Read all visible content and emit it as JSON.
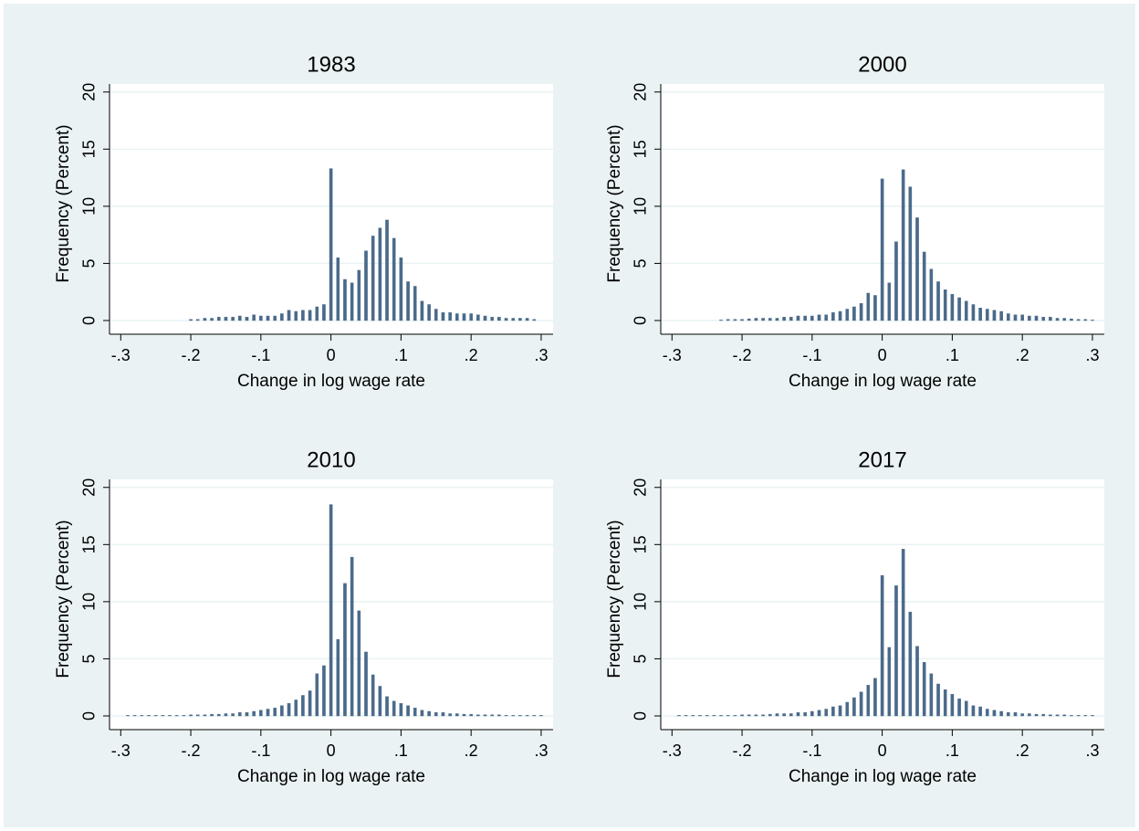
{
  "chart_data": [
    {
      "type": "bar",
      "title": "1983",
      "xlabel": "Change in log wage rate",
      "ylabel": "Frequency (Percent)",
      "color": "#4a6a8a",
      "grid": true,
      "xlim": [
        -0.316,
        0.317
      ],
      "ylim": [
        -1.2,
        20.7
      ],
      "xticks": [
        {
          "value": -0.3,
          "label": "-.3"
        },
        {
          "value": -0.2,
          "label": "-.2"
        },
        {
          "value": -0.1,
          "label": "-.1"
        },
        0,
        {
          "value": 0.1,
          "label": ".1"
        },
        {
          "value": 0.2,
          "label": ".2"
        },
        {
          "value": 0.3,
          "label": ".3"
        }
      ],
      "yticks": [
        0,
        5,
        10,
        15,
        20
      ],
      "x": [
        -0.3,
        -0.29,
        -0.28,
        -0.27,
        -0.26,
        -0.25,
        -0.24,
        -0.23,
        -0.22,
        -0.21,
        -0.2,
        -0.19,
        -0.18,
        -0.17,
        -0.16,
        -0.15,
        -0.14,
        -0.13,
        -0.12,
        -0.11,
        -0.1,
        -0.09,
        -0.08,
        -0.07,
        -0.06,
        -0.05,
        -0.04,
        -0.03,
        -0.02,
        -0.01,
        0,
        0.01,
        0.02,
        0.03,
        0.04,
        0.05,
        0.06,
        0.07,
        0.08,
        0.09,
        0.1,
        0.11,
        0.12,
        0.13,
        0.14,
        0.15,
        0.16,
        0.17,
        0.18,
        0.19,
        0.2,
        0.21,
        0.22,
        0.23,
        0.24,
        0.25,
        0.26,
        0.27,
        0.28,
        0.29,
        0.3
      ],
      "values": [
        0,
        0,
        0,
        0,
        0,
        0,
        0,
        0,
        0,
        0,
        0.1,
        0.1,
        0.2,
        0.2,
        0.3,
        0.3,
        0.3,
        0.4,
        0.3,
        0.5,
        0.4,
        0.4,
        0.4,
        0.6,
        0.9,
        0.8,
        0.9,
        0.9,
        1.2,
        1.4,
        13.3,
        5.5,
        3.6,
        3.3,
        4.4,
        6.1,
        7.4,
        8.1,
        8.8,
        7.2,
        5.5,
        3.4,
        3.0,
        1.7,
        1.4,
        1.0,
        0.7,
        0.7,
        0.6,
        0.6,
        0.6,
        0.5,
        0.4,
        0.3,
        0.3,
        0.2,
        0.2,
        0.2,
        0.2,
        0.1,
        0
      ]
    },
    {
      "type": "bar",
      "title": "2000",
      "xlabel": "Change in log wage rate",
      "ylabel": "Frequency (Percent)",
      "color": "#4a6a8a",
      "grid": true,
      "xlim": [
        -0.316,
        0.317
      ],
      "ylim": [
        -1.2,
        20.7
      ],
      "xticks": [
        {
          "value": -0.3,
          "label": "-.3"
        },
        {
          "value": -0.2,
          "label": "-.2"
        },
        {
          "value": -0.1,
          "label": "-.1"
        },
        0,
        {
          "value": 0.1,
          "label": ".1"
        },
        {
          "value": 0.2,
          "label": ".2"
        },
        {
          "value": 0.3,
          "label": ".3"
        }
      ],
      "yticks": [
        0,
        5,
        10,
        15,
        20
      ],
      "x": [
        -0.3,
        -0.29,
        -0.28,
        -0.27,
        -0.26,
        -0.25,
        -0.24,
        -0.23,
        -0.22,
        -0.21,
        -0.2,
        -0.19,
        -0.18,
        -0.17,
        -0.16,
        -0.15,
        -0.14,
        -0.13,
        -0.12,
        -0.11,
        -0.1,
        -0.09,
        -0.08,
        -0.07,
        -0.06,
        -0.05,
        -0.04,
        -0.03,
        -0.02,
        -0.01,
        0,
        0.01,
        0.02,
        0.03,
        0.04,
        0.05,
        0.06,
        0.07,
        0.08,
        0.09,
        0.1,
        0.11,
        0.12,
        0.13,
        0.14,
        0.15,
        0.16,
        0.17,
        0.18,
        0.19,
        0.2,
        0.21,
        0.22,
        0.23,
        0.24,
        0.25,
        0.26,
        0.27,
        0.28,
        0.29,
        0.3
      ],
      "values": [
        0,
        0,
        0,
        0,
        0,
        0,
        0,
        0.05,
        0.1,
        0.1,
        0.1,
        0.15,
        0.2,
        0.2,
        0.2,
        0.2,
        0.3,
        0.3,
        0.4,
        0.4,
        0.4,
        0.5,
        0.5,
        0.7,
        0.8,
        1.0,
        1.2,
        1.5,
        2.4,
        2.2,
        12.4,
        3.3,
        6.9,
        13.2,
        11.7,
        9.0,
        6.0,
        4.5,
        3.4,
        2.7,
        2.3,
        2.0,
        1.7,
        1.4,
        1.1,
        1.0,
        0.9,
        0.8,
        0.6,
        0.5,
        0.5,
        0.4,
        0.4,
        0.3,
        0.3,
        0.2,
        0.2,
        0.15,
        0.1,
        0.1,
        0.05
      ]
    },
    {
      "type": "bar",
      "title": "2010",
      "xlabel": "Change in log wage rate",
      "ylabel": "Frequency (Percent)",
      "color": "#4a6a8a",
      "grid": true,
      "xlim": [
        -0.316,
        0.317
      ],
      "ylim": [
        -1.2,
        20.7
      ],
      "xticks": [
        {
          "value": -0.3,
          "label": "-.3"
        },
        {
          "value": -0.2,
          "label": "-.2"
        },
        {
          "value": -0.1,
          "label": "-.1"
        },
        0,
        {
          "value": 0.1,
          "label": ".1"
        },
        {
          "value": 0.2,
          "label": ".2"
        },
        {
          "value": 0.3,
          "label": ".3"
        }
      ],
      "yticks": [
        0,
        5,
        10,
        15,
        20
      ],
      "x": [
        -0.3,
        -0.29,
        -0.28,
        -0.27,
        -0.26,
        -0.25,
        -0.24,
        -0.23,
        -0.22,
        -0.21,
        -0.2,
        -0.19,
        -0.18,
        -0.17,
        -0.16,
        -0.15,
        -0.14,
        -0.13,
        -0.12,
        -0.11,
        -0.1,
        -0.09,
        -0.08,
        -0.07,
        -0.06,
        -0.05,
        -0.04,
        -0.03,
        -0.02,
        -0.01,
        0,
        0.01,
        0.02,
        0.03,
        0.04,
        0.05,
        0.06,
        0.07,
        0.08,
        0.09,
        0.1,
        0.11,
        0.12,
        0.13,
        0.14,
        0.15,
        0.16,
        0.17,
        0.18,
        0.19,
        0.2,
        0.21,
        0.22,
        0.23,
        0.24,
        0.25,
        0.26,
        0.27,
        0.28,
        0.29,
        0.3
      ],
      "values": [
        0,
        0.05,
        0.05,
        0.05,
        0.05,
        0.05,
        0.05,
        0.05,
        0.05,
        0.05,
        0.1,
        0.1,
        0.1,
        0.15,
        0.15,
        0.2,
        0.2,
        0.3,
        0.3,
        0.4,
        0.5,
        0.6,
        0.7,
        0.9,
        1.1,
        1.4,
        1.8,
        2.2,
        3.7,
        4.4,
        18.5,
        6.7,
        11.6,
        13.9,
        9.2,
        5.6,
        3.6,
        2.6,
        1.7,
        1.3,
        1.1,
        0.9,
        0.7,
        0.5,
        0.4,
        0.3,
        0.3,
        0.2,
        0.2,
        0.15,
        0.15,
        0.1,
        0.1,
        0.1,
        0.1,
        0.05,
        0.05,
        0.05,
        0.05,
        0.05,
        0.05
      ]
    },
    {
      "type": "bar",
      "title": "2017",
      "xlabel": "Change in log wage rate",
      "ylabel": "Frequency (Percent)",
      "color": "#4a6a8a",
      "grid": true,
      "xlim": [
        -0.316,
        0.317
      ],
      "ylim": [
        -1.2,
        20.7
      ],
      "xticks": [
        {
          "value": -0.3,
          "label": "-.3"
        },
        {
          "value": -0.2,
          "label": "-.2"
        },
        {
          "value": -0.1,
          "label": "-.1"
        },
        0,
        {
          "value": 0.1,
          "label": ".1"
        },
        {
          "value": 0.2,
          "label": ".2"
        },
        {
          "value": 0.3,
          "label": ".3"
        }
      ],
      "yticks": [
        0,
        5,
        10,
        15,
        20
      ],
      "x": [
        -0.3,
        -0.29,
        -0.28,
        -0.27,
        -0.26,
        -0.25,
        -0.24,
        -0.23,
        -0.22,
        -0.21,
        -0.2,
        -0.19,
        -0.18,
        -0.17,
        -0.16,
        -0.15,
        -0.14,
        -0.13,
        -0.12,
        -0.11,
        -0.1,
        -0.09,
        -0.08,
        -0.07,
        -0.06,
        -0.05,
        -0.04,
        -0.03,
        -0.02,
        -0.01,
        0,
        0.01,
        0.02,
        0.03,
        0.04,
        0.05,
        0.06,
        0.07,
        0.08,
        0.09,
        0.1,
        0.11,
        0.12,
        0.13,
        0.14,
        0.15,
        0.16,
        0.17,
        0.18,
        0.19,
        0.2,
        0.21,
        0.22,
        0.23,
        0.24,
        0.25,
        0.26,
        0.27,
        0.28,
        0.29,
        0.3
      ],
      "values": [
        0,
        0.05,
        0.05,
        0.05,
        0.05,
        0.05,
        0.05,
        0.05,
        0.05,
        0.05,
        0.1,
        0.1,
        0.1,
        0.1,
        0.15,
        0.2,
        0.2,
        0.2,
        0.3,
        0.3,
        0.4,
        0.5,
        0.6,
        0.8,
        0.9,
        1.2,
        1.6,
        2.1,
        2.7,
        3.3,
        12.3,
        6.0,
        11.4,
        14.6,
        9.1,
        6.1,
        4.7,
        3.7,
        2.8,
        2.3,
        1.9,
        1.5,
        1.3,
        0.9,
        0.8,
        0.6,
        0.5,
        0.4,
        0.3,
        0.3,
        0.2,
        0.2,
        0.15,
        0.15,
        0.1,
        0.1,
        0.1,
        0.05,
        0.05,
        0.05,
        0.05
      ]
    }
  ]
}
